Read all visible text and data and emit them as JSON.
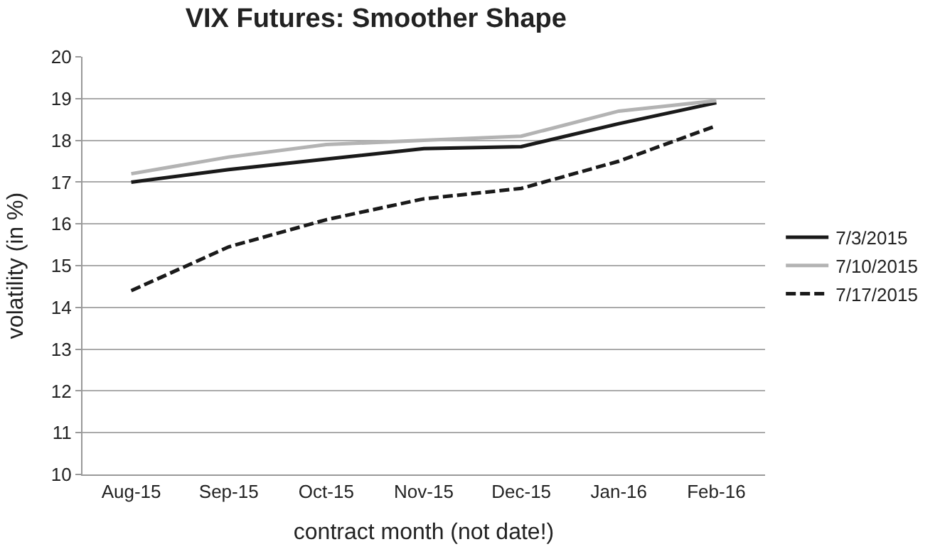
{
  "chart_data": {
    "type": "line",
    "title": "VIX Futures: Smoother Shape",
    "xlabel": "contract month (not date!)",
    "ylabel": "volatility (in %)",
    "categories": [
      "Aug-15",
      "Sep-15",
      "Oct-15",
      "Nov-15",
      "Dec-15",
      "Jan-16",
      "Feb-16"
    ],
    "series": [
      {
        "name": "7/3/2015",
        "color": "#1a1a1a",
        "values": [
          17.0,
          17.3,
          17.55,
          17.8,
          17.85,
          18.4,
          18.9
        ]
      },
      {
        "name": "7/10/2015",
        "color": "#b3b3b3",
        "values": [
          17.2,
          17.6,
          17.9,
          18.0,
          18.1,
          18.7,
          18.95
        ]
      },
      {
        "name": "7/17/2015",
        "color": "#1a1a1a",
        "line_style": "dashed",
        "values": [
          14.4,
          15.45,
          16.1,
          16.6,
          16.85,
          17.5,
          18.35
        ]
      }
    ],
    "ylim": [
      10,
      20
    ],
    "yticks": [
      10,
      11,
      12,
      13,
      14,
      15,
      16,
      17,
      18,
      19,
      20
    ],
    "grid": "y",
    "legend": "right",
    "marker": "none"
  }
}
